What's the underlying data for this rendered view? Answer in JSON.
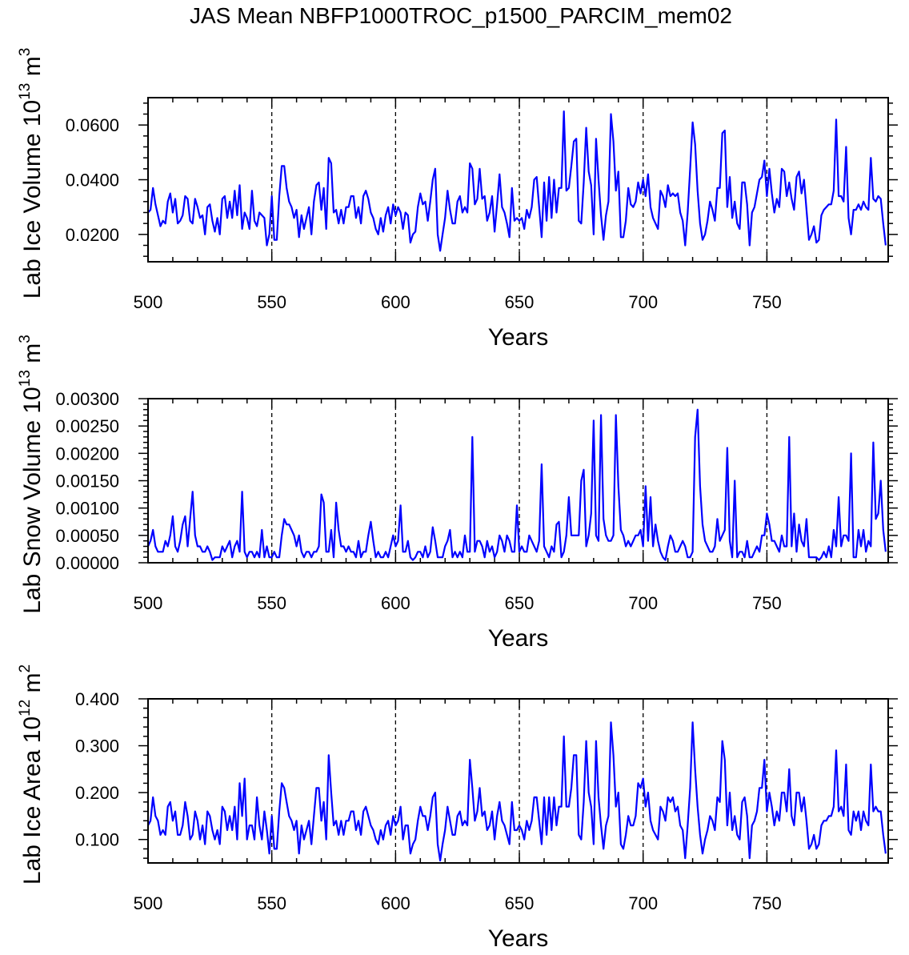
{
  "title": "JAS Mean NBFP1000TROC_p1500_PARCIM_mem02",
  "series_color": "#0000ff",
  "chart_data": [
    {
      "type": "line",
      "xlabel": "Years",
      "ylabel": {
        "text": "Lab Ice Volume 10",
        "exp": "13",
        "unit": " m",
        "unit_exp": "3"
      },
      "xlim": [
        500,
        799
      ],
      "ylim": [
        0.01,
        0.07
      ],
      "xticks": [
        500,
        550,
        600,
        650,
        700,
        750
      ],
      "xtick_labels": [
        "500",
        "550",
        "600",
        "650",
        "700",
        "750"
      ],
      "yticks": [
        0.02,
        0.04,
        0.06
      ],
      "ytick_labels": [
        "0.0200",
        "0.0400",
        "0.0600"
      ],
      "y_minor_step": 0.004,
      "reference_lines_x": [
        550,
        600,
        650,
        700,
        750
      ],
      "x_start": 500,
      "values": [
        0.028,
        0.029,
        0.037,
        0.031,
        0.027,
        0.023,
        0.025,
        0.024,
        0.032,
        0.035,
        0.028,
        0.033,
        0.024,
        0.025,
        0.027,
        0.034,
        0.033,
        0.025,
        0.024,
        0.033,
        0.03,
        0.026,
        0.027,
        0.02,
        0.03,
        0.031,
        0.025,
        0.021,
        0.026,
        0.02,
        0.033,
        0.034,
        0.026,
        0.032,
        0.026,
        0.036,
        0.027,
        0.038,
        0.022,
        0.028,
        0.026,
        0.022,
        0.036,
        0.025,
        0.023,
        0.028,
        0.027,
        0.026,
        0.016,
        0.02,
        0.034,
        0.018,
        0.018,
        0.034,
        0.045,
        0.045,
        0.037,
        0.032,
        0.03,
        0.026,
        0.029,
        0.019,
        0.027,
        0.022,
        0.026,
        0.03,
        0.02,
        0.032,
        0.038,
        0.039,
        0.029,
        0.037,
        0.022,
        0.048,
        0.046,
        0.028,
        0.029,
        0.024,
        0.029,
        0.024,
        0.03,
        0.03,
        0.034,
        0.034,
        0.026,
        0.03,
        0.024,
        0.034,
        0.036,
        0.033,
        0.028,
        0.026,
        0.022,
        0.02,
        0.026,
        0.021,
        0.027,
        0.03,
        0.024,
        0.031,
        0.027,
        0.03,
        0.028,
        0.022,
        0.028,
        0.027,
        0.017,
        0.02,
        0.021,
        0.03,
        0.035,
        0.031,
        0.032,
        0.025,
        0.032,
        0.04,
        0.044,
        0.02,
        0.014,
        0.02,
        0.026,
        0.036,
        0.029,
        0.024,
        0.024,
        0.032,
        0.034,
        0.028,
        0.03,
        0.028,
        0.046,
        0.044,
        0.031,
        0.033,
        0.044,
        0.033,
        0.034,
        0.025,
        0.028,
        0.034,
        0.021,
        0.031,
        0.042,
        0.03,
        0.028,
        0.024,
        0.019,
        0.037,
        0.025,
        0.026,
        0.025,
        0.026,
        0.022,
        0.029,
        0.026,
        0.03,
        0.04,
        0.041,
        0.03,
        0.019,
        0.039,
        0.025,
        0.041,
        0.026,
        0.04,
        0.028,
        0.037,
        0.037,
        0.065,
        0.036,
        0.037,
        0.045,
        0.054,
        0.055,
        0.025,
        0.024,
        0.039,
        0.059,
        0.043,
        0.038,
        0.02,
        0.055,
        0.04,
        0.027,
        0.018,
        0.027,
        0.032,
        0.064,
        0.054,
        0.036,
        0.043,
        0.019,
        0.019,
        0.025,
        0.037,
        0.031,
        0.03,
        0.032,
        0.039,
        0.035,
        0.04,
        0.034,
        0.042,
        0.03,
        0.026,
        0.024,
        0.022,
        0.036,
        0.034,
        0.03,
        0.038,
        0.034,
        0.035,
        0.034,
        0.035,
        0.028,
        0.025,
        0.016,
        0.028,
        0.044,
        0.061,
        0.053,
        0.036,
        0.024,
        0.018,
        0.02,
        0.025,
        0.032,
        0.029,
        0.025,
        0.037,
        0.037,
        0.057,
        0.058,
        0.03,
        0.041,
        0.026,
        0.032,
        0.024,
        0.022,
        0.039,
        0.039,
        0.031,
        0.016,
        0.028,
        0.03,
        0.035,
        0.04,
        0.041,
        0.047,
        0.034,
        0.044,
        0.035,
        0.028,
        0.033,
        0.03,
        0.044,
        0.043,
        0.034,
        0.039,
        0.033,
        0.029,
        0.041,
        0.043,
        0.035,
        0.04,
        0.029,
        0.018,
        0.02,
        0.023,
        0.017,
        0.018,
        0.027,
        0.029,
        0.03,
        0.031,
        0.031,
        0.036,
        0.062,
        0.034,
        0.034,
        0.032,
        0.052,
        0.026,
        0.02,
        0.029,
        0.029,
        0.031,
        0.029,
        0.032,
        0.03,
        0.029,
        0.048,
        0.033,
        0.032,
        0.034,
        0.033,
        0.024,
        0.016
      ]
    },
    {
      "type": "line",
      "xlabel": "Years",
      "ylabel": {
        "text": "Lab Snow Volume 10",
        "exp": "13",
        "unit": " m",
        "unit_exp": "3"
      },
      "xlim": [
        500,
        799
      ],
      "ylim": [
        0,
        0.003
      ],
      "xticks": [
        500,
        550,
        600,
        650,
        700,
        750
      ],
      "xtick_labels": [
        "500",
        "550",
        "600",
        "650",
        "700",
        "750"
      ],
      "yticks": [
        0,
        0.0005,
        0.001,
        0.0015,
        0.002,
        0.0025,
        0.003
      ],
      "ytick_labels": [
        "0.00000",
        "0.00050",
        "0.00100",
        "0.00150",
        "0.00200",
        "0.00250",
        "0.00300"
      ],
      "y_minor_step": 0.0001,
      "reference_lines_x": [
        550,
        600,
        650,
        700,
        750
      ],
      "x_start": 500,
      "values": [
        0.0003,
        0.0004,
        0.0006,
        0.0003,
        0.0002,
        0.0002,
        0.0002,
        0.0004,
        0.0003,
        0.0005,
        0.00085,
        0.0003,
        0.0002,
        0.0004,
        0.0007,
        0.00085,
        0.0003,
        0.0008,
        0.0013,
        0.0005,
        0.0003,
        0.0003,
        0.0002,
        0.0002,
        0.0003,
        0.0002,
        5e-05,
        0.0001,
        0.0001,
        0.0001,
        0.0003,
        0.0002,
        0.0003,
        0.0004,
        0.0001,
        0.0003,
        0.0004,
        0.0002,
        0.0013,
        0.0002,
        0.0001,
        0.0002,
        0.0002,
        0.0001,
        0.0002,
        0.0001,
        0.0006,
        0.0001,
        0.0003,
        0.0001,
        0.0001,
        0.0002,
        0.0001,
        0.0001,
        0.0005,
        0.0008,
        0.0007,
        0.0007,
        0.0006,
        0.0005,
        0.0003,
        0.0005,
        0.0002,
        0.0001,
        0.0002,
        0.0002,
        0.0001,
        0.0002,
        0.0002,
        0.0003,
        0.00125,
        0.0011,
        0.0002,
        0.0002,
        0.0006,
        0.0001,
        0.0011,
        0.0006,
        0.0003,
        0.0003,
        0.0002,
        0.0003,
        0.0002,
        0.0002,
        0.0001,
        0.0004,
        0.0001,
        0.0002,
        0.0002,
        0.0005,
        0.00075,
        0.0004,
        0.0001,
        0.0002,
        0.0001,
        0.0001,
        0.0002,
        0.0001,
        0.0003,
        0.0005,
        0.0003,
        0.0004,
        0.00105,
        0.0002,
        0.0002,
        0.0004,
        0.0001,
        5e-05,
        0.0001,
        0.0002,
        0.0002,
        0.0001,
        0.0003,
        0.0001,
        0.0002,
        0.00065,
        0.0004,
        0.0001,
        0.0001,
        0.0001,
        0.0003,
        0.0004,
        0.0006,
        0.0001,
        0.0002,
        0.0001,
        0.0002,
        0.0001,
        0.0005,
        0.0002,
        0.0002,
        0.0023,
        0.0002,
        0.0004,
        0.0004,
        0.0003,
        0.0001,
        0.0004,
        0.0002,
        0.0003,
        0.0001,
        0.0002,
        0.0005,
        0.0004,
        0.0002,
        0.0005,
        0.0004,
        0.0002,
        0.0002,
        0.00105,
        0.0002,
        0.0003,
        0.0002,
        0.0002,
        0.0005,
        0.0004,
        0.0003,
        0.0002,
        0.0004,
        0.0018,
        0.0003,
        0.0002,
        0.0001,
        0.0003,
        0.0002,
        0.0007,
        0.00075,
        0.0001,
        0.0002,
        0.0005,
        0.0012,
        0.0005,
        0.0005,
        0.0005,
        0.0005,
        0.0015,
        0.0017,
        0.0003,
        0.0005,
        0.0009,
        0.0026,
        0.0005,
        0.0004,
        0.0027,
        0.0008,
        0.0005,
        0.0004,
        0.0004,
        0.0005,
        0.0027,
        0.0014,
        0.0006,
        0.0005,
        0.0003,
        0.0004,
        0.0003,
        0.0004,
        0.0005,
        0.0005,
        0.0006,
        0.0003,
        0.0014,
        0.0004,
        0.0012,
        0.0003,
        0.0007,
        0.0004,
        0.0002,
        0.0001,
        5e-05,
        0.0003,
        0.0005,
        0.0004,
        0.0002,
        0.0002,
        0.0003,
        0.0004,
        0.0003,
        0.0001,
        0.0001,
        0.0002,
        0.0023,
        0.0028,
        0.0014,
        0.0007,
        0.0004,
        0.0003,
        0.0002,
        0.0002,
        0.0003,
        0.0008,
        0.0004,
        0.0005,
        0.0006,
        0.0021,
        0.0004,
        0.0001,
        0.0015,
        0.0001,
        0.0002,
        0.0002,
        0.0001,
        0.0004,
        0.0001,
        0.0001,
        0.0002,
        0.0003,
        0.0002,
        0.0005,
        0.0005,
        0.0009,
        0.0007,
        0.0004,
        0.0004,
        0.0003,
        0.0002,
        0.0005,
        0.0003,
        0.0003,
        0.0023,
        0.0003,
        0.0009,
        0.0002,
        0.0007,
        0.0004,
        0.0003,
        0.0008,
        0.0001,
        0.0001,
        0.0001,
        0.0001,
        5e-05,
        0.0001,
        0.0002,
        0.0001,
        0.0003,
        0.0001,
        0.0006,
        0.0003,
        0.0012,
        0.0003,
        0.0005,
        0.0005,
        0.0004,
        0.002,
        0.0001,
        0.0001,
        0.0006,
        0.0003,
        0.0006,
        0.0002,
        0.0004,
        0.0003,
        0.0022,
        0.0008,
        0.0009,
        0.0015,
        0.0006,
        0.0002
      ]
    },
    {
      "type": "line",
      "xlabel": "Years",
      "ylabel": {
        "text": "Lab Ice Area 10",
        "exp": "12",
        "unit": " m",
        "unit_exp": "2"
      },
      "xlim": [
        500,
        799
      ],
      "ylim": [
        0.05,
        0.4
      ],
      "xticks": [
        500,
        550,
        600,
        650,
        700,
        750
      ],
      "xtick_labels": [
        "500",
        "550",
        "600",
        "650",
        "700",
        "750"
      ],
      "yticks": [
        0.1,
        0.2,
        0.3,
        0.4
      ],
      "ytick_labels": [
        "0.100",
        "0.200",
        "0.300",
        "0.400"
      ],
      "y_minor_step": 0.02,
      "reference_lines_x": [
        550,
        600,
        650,
        700,
        750
      ],
      "x_start": 500,
      "values": [
        0.13,
        0.14,
        0.19,
        0.15,
        0.14,
        0.11,
        0.12,
        0.11,
        0.17,
        0.18,
        0.14,
        0.16,
        0.11,
        0.11,
        0.13,
        0.18,
        0.15,
        0.1,
        0.11,
        0.16,
        0.14,
        0.1,
        0.13,
        0.09,
        0.16,
        0.15,
        0.12,
        0.1,
        0.12,
        0.09,
        0.17,
        0.16,
        0.12,
        0.15,
        0.12,
        0.17,
        0.1,
        0.22,
        0.15,
        0.23,
        0.1,
        0.13,
        0.13,
        0.1,
        0.19,
        0.13,
        0.1,
        0.16,
        0.12,
        0.07,
        0.15,
        0.08,
        0.08,
        0.16,
        0.22,
        0.21,
        0.18,
        0.15,
        0.14,
        0.12,
        0.14,
        0.07,
        0.13,
        0.1,
        0.12,
        0.14,
        0.09,
        0.15,
        0.21,
        0.21,
        0.14,
        0.18,
        0.1,
        0.28,
        0.2,
        0.13,
        0.14,
        0.11,
        0.14,
        0.11,
        0.14,
        0.14,
        0.16,
        0.16,
        0.12,
        0.14,
        0.11,
        0.16,
        0.17,
        0.15,
        0.13,
        0.12,
        0.1,
        0.09,
        0.12,
        0.1,
        0.13,
        0.14,
        0.11,
        0.15,
        0.13,
        0.14,
        0.17,
        0.1,
        0.13,
        0.13,
        0.07,
        0.09,
        0.1,
        0.14,
        0.17,
        0.15,
        0.15,
        0.12,
        0.15,
        0.19,
        0.2,
        0.09,
        0.055,
        0.09,
        0.12,
        0.17,
        0.14,
        0.11,
        0.11,
        0.15,
        0.16,
        0.13,
        0.14,
        0.13,
        0.27,
        0.21,
        0.14,
        0.16,
        0.21,
        0.15,
        0.16,
        0.12,
        0.13,
        0.16,
        0.1,
        0.15,
        0.18,
        0.14,
        0.13,
        0.11,
        0.09,
        0.18,
        0.12,
        0.12,
        0.13,
        0.12,
        0.1,
        0.14,
        0.12,
        0.14,
        0.19,
        0.19,
        0.14,
        0.09,
        0.19,
        0.11,
        0.19,
        0.12,
        0.19,
        0.13,
        0.17,
        0.17,
        0.32,
        0.17,
        0.17,
        0.21,
        0.28,
        0.28,
        0.11,
        0.1,
        0.18,
        0.31,
        0.2,
        0.17,
        0.09,
        0.31,
        0.19,
        0.13,
        0.08,
        0.13,
        0.15,
        0.35,
        0.28,
        0.17,
        0.2,
        0.09,
        0.08,
        0.11,
        0.15,
        0.13,
        0.13,
        0.15,
        0.22,
        0.21,
        0.23,
        0.17,
        0.2,
        0.14,
        0.12,
        0.11,
        0.1,
        0.17,
        0.16,
        0.14,
        0.19,
        0.18,
        0.19,
        0.16,
        0.17,
        0.13,
        0.12,
        0.06,
        0.13,
        0.21,
        0.35,
        0.25,
        0.17,
        0.11,
        0.07,
        0.1,
        0.12,
        0.15,
        0.14,
        0.12,
        0.19,
        0.18,
        0.31,
        0.27,
        0.13,
        0.2,
        0.12,
        0.15,
        0.11,
        0.1,
        0.18,
        0.19,
        0.15,
        0.06,
        0.13,
        0.14,
        0.16,
        0.21,
        0.21,
        0.27,
        0.16,
        0.2,
        0.17,
        0.13,
        0.16,
        0.14,
        0.2,
        0.2,
        0.16,
        0.25,
        0.15,
        0.13,
        0.2,
        0.2,
        0.16,
        0.19,
        0.14,
        0.08,
        0.09,
        0.11,
        0.08,
        0.09,
        0.13,
        0.14,
        0.14,
        0.15,
        0.15,
        0.17,
        0.29,
        0.16,
        0.17,
        0.15,
        0.26,
        0.12,
        0.11,
        0.16,
        0.14,
        0.16,
        0.12,
        0.16,
        0.14,
        0.13,
        0.26,
        0.16,
        0.17,
        0.16,
        0.16,
        0.11,
        0.07
      ]
    }
  ]
}
